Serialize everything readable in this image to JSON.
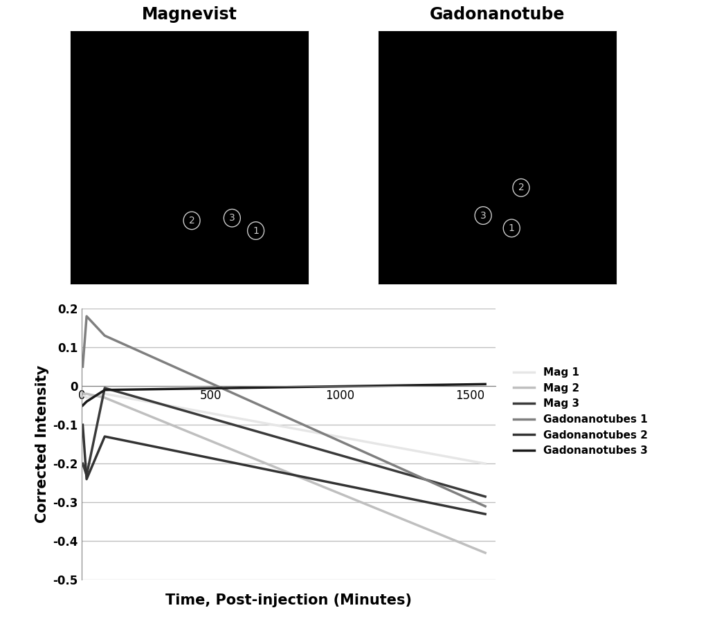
{
  "images": [
    {
      "title": "Magnevist",
      "regions": [
        "1",
        "2",
        "3"
      ]
    },
    {
      "title": "Gadonanotube",
      "regions": [
        "1",
        "2",
        "3"
      ]
    }
  ],
  "chart_data": {
    "type": "line",
    "x_label": "Time, Post-injection (Minutes)",
    "y_label": "Corrected Intensity",
    "x": [
      5,
      20,
      90,
      1560
    ],
    "series": [
      {
        "name": "Mag 1",
        "color": "#e6e6e6",
        "values": [
          -0.02,
          -0.03,
          -0.02,
          -0.2
        ]
      },
      {
        "name": "Mag 2",
        "color": "#bfbfbf",
        "values": [
          -0.02,
          -0.02,
          -0.03,
          -0.43
        ]
      },
      {
        "name": "Mag 3",
        "color": "#3a3a3a",
        "values": [
          -0.2,
          -0.23,
          -0.005,
          -0.285
        ]
      },
      {
        "name": "Gadonanotubes 1",
        "color": "#7f7f7f",
        "values": [
          0.05,
          0.18,
          0.13,
          -0.31
        ]
      },
      {
        "name": "Gadonanotubes 2",
        "color": "#333333",
        "values": [
          -0.1,
          -0.24,
          -0.13,
          -0.33
        ]
      },
      {
        "name": "Gadonanotubes 3",
        "color": "#1a1a1a",
        "values": [
          -0.05,
          -0.04,
          -0.01,
          0.005
        ]
      }
    ],
    "xlim": [
      0,
      1600
    ],
    "xticks": [
      0,
      500,
      1000,
      1500
    ],
    "ylim": [
      -0.5,
      0.2
    ],
    "yticks": [
      -0.5,
      -0.4,
      -0.3,
      -0.2,
      -0.1,
      0,
      0.1,
      0.2
    ],
    "grid": true,
    "legend": "right"
  }
}
